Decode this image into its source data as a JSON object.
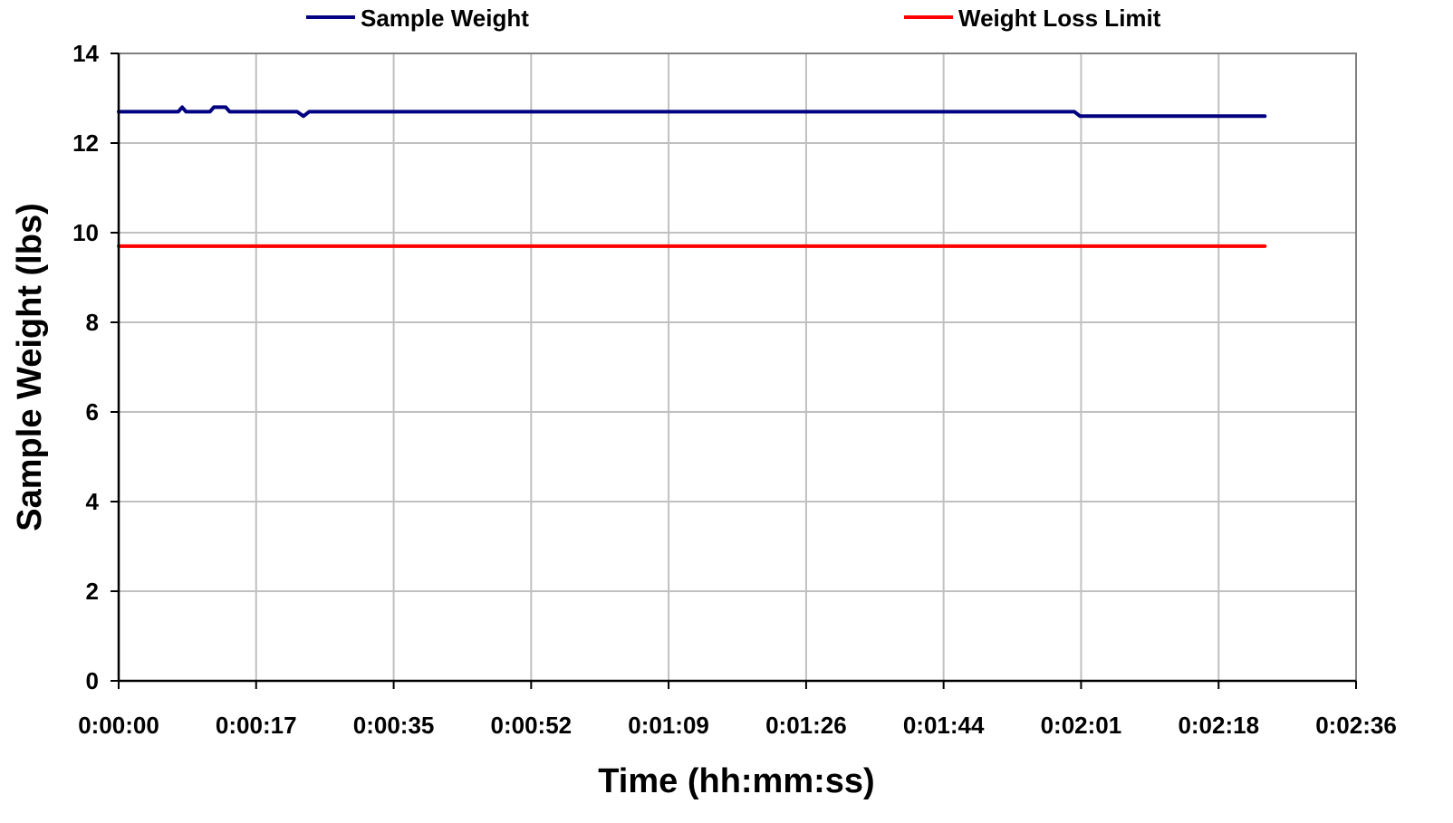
{
  "chart_data": {
    "type": "line",
    "xlabel": "Time (hh:mm:ss)",
    "ylabel": "Sample Weight (lbs)",
    "ylim": [
      0,
      14
    ],
    "yticks": [
      0,
      2,
      4,
      6,
      8,
      10,
      12,
      14
    ],
    "xlim": [
      0,
      156
    ],
    "xticks": [
      {
        "t": 0,
        "label": "0:00:00"
      },
      {
        "t": 17.33,
        "label": "0:00:17"
      },
      {
        "t": 34.67,
        "label": "0:00:35"
      },
      {
        "t": 52,
        "label": "0:00:52"
      },
      {
        "t": 69.33,
        "label": "0:01:09"
      },
      {
        "t": 86.67,
        "label": "0:01:26"
      },
      {
        "t": 104,
        "label": "0:01:44"
      },
      {
        "t": 121.33,
        "label": "0:02:01"
      },
      {
        "t": 138.67,
        "label": "0:02:18"
      },
      {
        "t": 156,
        "label": "0:02:36"
      }
    ],
    "grid": true,
    "legend_position": "top",
    "series": [
      {
        "name": "Sample Weight",
        "color": "#000080",
        "x": [
          0,
          7.5,
          8,
          8.5,
          11.5,
          12,
          13.5,
          14,
          22.5,
          23.3,
          24,
          120.5,
          121.2,
          139.5,
          144.5
        ],
        "y": [
          12.7,
          12.7,
          12.8,
          12.7,
          12.7,
          12.8,
          12.8,
          12.7,
          12.7,
          12.6,
          12.7,
          12.7,
          12.6,
          12.6,
          12.6
        ]
      },
      {
        "name": "Weight Loss Limit",
        "color": "#ff0000",
        "x": [
          0,
          144.5
        ],
        "y": [
          9.7,
          9.7
        ]
      }
    ]
  }
}
